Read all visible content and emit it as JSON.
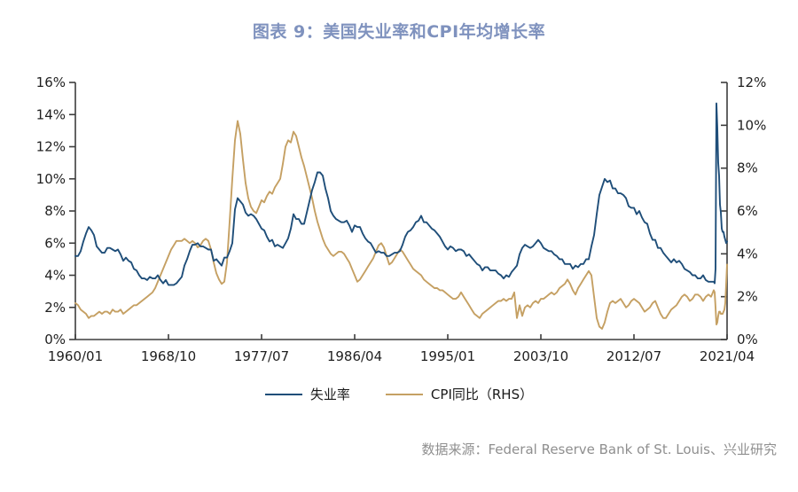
{
  "title": "图表 9：美国失业率和CPI年均增长率",
  "title_color": "#7F92BE",
  "source": "数据来源：Federal Reserve Bank of St. Louis、兴业研究",
  "legend": {
    "unemployment_label": "失业率",
    "cpi_label": "CPI同比（RHS）"
  },
  "chart_data": {
    "type": "line",
    "title": "图表 9：美国失业率和CPI年均增长率",
    "x_tick_labels": [
      "1960/01",
      "1968/10",
      "1977/07",
      "1986/04",
      "1995/01",
      "2003/10",
      "2012/07",
      "2021/04"
    ],
    "x_tick_years": [
      1960.0,
      1968.75,
      1977.5,
      1986.25,
      1995.0,
      2003.75,
      2012.5,
      2021.25
    ],
    "x_range": [
      1960.0,
      2021.25
    ],
    "left_axis": {
      "min": 0,
      "max": 16,
      "step": 2,
      "suffix": "%"
    },
    "right_axis": {
      "min": 0,
      "max": 12,
      "step": 2,
      "suffix": "%"
    },
    "grid": false,
    "legend_position": "bottom",
    "series": [
      {
        "name": "失业率",
        "axis": "left",
        "color": "#1F4E79",
        "start": 1960.0,
        "step": 0.25,
        "values": [
          5.2,
          5.2,
          5.5,
          6.1,
          6.6,
          7.0,
          6.8,
          6.5,
          5.8,
          5.6,
          5.4,
          5.4,
          5.7,
          5.7,
          5.6,
          5.5,
          5.6,
          5.3,
          4.9,
          5.1,
          4.9,
          4.8,
          4.4,
          4.3,
          4.0,
          3.8,
          3.8,
          3.7,
          3.9,
          3.8,
          3.8,
          4.0,
          3.7,
          3.5,
          3.7,
          3.4,
          3.4,
          3.4,
          3.5,
          3.7,
          3.9,
          4.6,
          5.0,
          5.5,
          5.9,
          5.9,
          6.0,
          5.8,
          5.8,
          5.7,
          5.6,
          5.6,
          4.9,
          5.0,
          4.8,
          4.6,
          5.1,
          5.1,
          5.5,
          6.0,
          8.1,
          8.8,
          8.6,
          8.4,
          7.9,
          7.7,
          7.8,
          7.7,
          7.5,
          7.2,
          6.9,
          6.8,
          6.4,
          6.1,
          6.2,
          5.8,
          5.9,
          5.8,
          5.7,
          6.0,
          6.3,
          6.9,
          7.8,
          7.5,
          7.5,
          7.2,
          7.2,
          7.9,
          8.6,
          9.3,
          9.8,
          10.4,
          10.4,
          10.2,
          9.4,
          8.8,
          8.0,
          7.7,
          7.5,
          7.4,
          7.3,
          7.3,
          7.4,
          7.1,
          6.7,
          7.1,
          7.0,
          7.0,
          6.6,
          6.3,
          6.1,
          6.0,
          5.7,
          5.4,
          5.5,
          5.4,
          5.4,
          5.2,
          5.2,
          5.3,
          5.4,
          5.4,
          5.5,
          5.9,
          6.4,
          6.7,
          6.8,
          7.0,
          7.3,
          7.4,
          7.7,
          7.3,
          7.3,
          7.1,
          6.9,
          6.8,
          6.6,
          6.4,
          6.1,
          5.8,
          5.6,
          5.8,
          5.7,
          5.5,
          5.6,
          5.6,
          5.5,
          5.2,
          5.3,
          5.1,
          4.9,
          4.7,
          4.6,
          4.3,
          4.5,
          4.5,
          4.3,
          4.3,
          4.3,
          4.1,
          4.0,
          3.8,
          4.0,
          3.9,
          4.2,
          4.4,
          4.6,
          5.3,
          5.7,
          5.9,
          5.8,
          5.7,
          5.8,
          6.0,
          6.2,
          6.0,
          5.7,
          5.6,
          5.5,
          5.5,
          5.3,
          5.2,
          5.0,
          5.0,
          4.7,
          4.7,
          4.7,
          4.4,
          4.6,
          4.5,
          4.7,
          4.7,
          5.0,
          5.0,
          5.8,
          6.5,
          7.8,
          9.0,
          9.5,
          10.0,
          9.8,
          9.9,
          9.4,
          9.4,
          9.1,
          9.1,
          9.0,
          8.8,
          8.3,
          8.2,
          8.2,
          7.8,
          8.0,
          7.6,
          7.3,
          7.2,
          6.6,
          6.2,
          6.2,
          5.7,
          5.7,
          5.4,
          5.2,
          5.0,
          4.8,
          5.0,
          4.8,
          4.9,
          4.7,
          4.4,
          4.3,
          4.2,
          4.0,
          4.0,
          3.8,
          3.8,
          4.0,
          3.7,
          3.6,
          3.6
        ],
        "tail_start": 2020.0,
        "tail_step": 0.08333,
        "tail_values": [
          3.6,
          3.5,
          4.4,
          14.7,
          13.2,
          11.0,
          10.2,
          8.4,
          7.9,
          6.9,
          6.7,
          6.7,
          6.4,
          6.2,
          6.0,
          6.1
        ]
      },
      {
        "name": "CPI同比（RHS）",
        "axis": "right",
        "color": "#C5A063",
        "start": 1960.0,
        "step": 0.25,
        "values": [
          1.7,
          1.6,
          1.4,
          1.3,
          1.2,
          1.0,
          1.1,
          1.1,
          1.2,
          1.3,
          1.2,
          1.3,
          1.3,
          1.2,
          1.4,
          1.3,
          1.3,
          1.4,
          1.2,
          1.3,
          1.4,
          1.5,
          1.6,
          1.6,
          1.7,
          1.8,
          1.9,
          2.0,
          2.1,
          2.2,
          2.4,
          2.7,
          3.0,
          3.3,
          3.6,
          3.9,
          4.2,
          4.4,
          4.6,
          4.6,
          4.6,
          4.7,
          4.6,
          4.5,
          4.6,
          4.5,
          4.3,
          4.4,
          4.6,
          4.7,
          4.6,
          4.2,
          3.6,
          3.1,
          2.8,
          2.6,
          2.7,
          3.6,
          5.5,
          7.5,
          9.3,
          10.2,
          9.6,
          8.4,
          7.3,
          6.6,
          6.2,
          6.0,
          5.9,
          6.2,
          6.5,
          6.4,
          6.7,
          6.9,
          6.8,
          7.1,
          7.3,
          7.5,
          8.2,
          9.0,
          9.3,
          9.2,
          9.7,
          9.5,
          9.0,
          8.5,
          8.1,
          7.6,
          7.1,
          6.6,
          6.0,
          5.5,
          5.1,
          4.7,
          4.4,
          4.2,
          4.0,
          3.9,
          4.0,
          4.1,
          4.1,
          4.0,
          3.8,
          3.6,
          3.3,
          3.0,
          2.7,
          2.8,
          3.0,
          3.2,
          3.4,
          3.6,
          3.8,
          4.1,
          4.4,
          4.5,
          4.3,
          3.9,
          3.5,
          3.6,
          3.8,
          4.0,
          4.2,
          4.1,
          3.9,
          3.7,
          3.5,
          3.3,
          3.2,
          3.1,
          3.0,
          2.8,
          2.7,
          2.6,
          2.5,
          2.4,
          2.4,
          2.3,
          2.3,
          2.2,
          2.1,
          2.0,
          1.9,
          1.9,
          2.0,
          2.2,
          2.0,
          1.8,
          1.6,
          1.4,
          1.2,
          1.1,
          1.0,
          1.2,
          1.3,
          1.4,
          1.5,
          1.6,
          1.7,
          1.8,
          1.8,
          1.9,
          1.8,
          1.9,
          1.9,
          2.2,
          1.0,
          1.6,
          1.1,
          1.5,
          1.6,
          1.5,
          1.7,
          1.8,
          1.7,
          1.9,
          1.9,
          2.0,
          2.1,
          2.2,
          2.1,
          2.2,
          2.4,
          2.5,
          2.6,
          2.8,
          2.6,
          2.3,
          2.1,
          2.4,
          2.6,
          2.8,
          3.0,
          3.2,
          3.0,
          2.0,
          1.0,
          0.6,
          0.5,
          0.8,
          1.3,
          1.7,
          1.8,
          1.7,
          1.8,
          1.9,
          1.7,
          1.5,
          1.6,
          1.8,
          1.9,
          1.8,
          1.7,
          1.5,
          1.3,
          1.4,
          1.5,
          1.7,
          1.8,
          1.5,
          1.2,
          1.0,
          1.0,
          1.2,
          1.4,
          1.5,
          1.6,
          1.8,
          2.0,
          2.1,
          2.0,
          1.8,
          1.9,
          2.1,
          2.1,
          2.0,
          1.8,
          2.0,
          2.1,
          2.0
        ],
        "tail_start": 2020.0,
        "tail_step": 0.08333,
        "tail_values": [
          2.3,
          2.2,
          1.5,
          0.7,
          0.8,
          1.1,
          1.3,
          1.3,
          1.2,
          1.2,
          1.2,
          1.3,
          1.4,
          1.7,
          2.6,
          3.5
        ]
      }
    ]
  }
}
